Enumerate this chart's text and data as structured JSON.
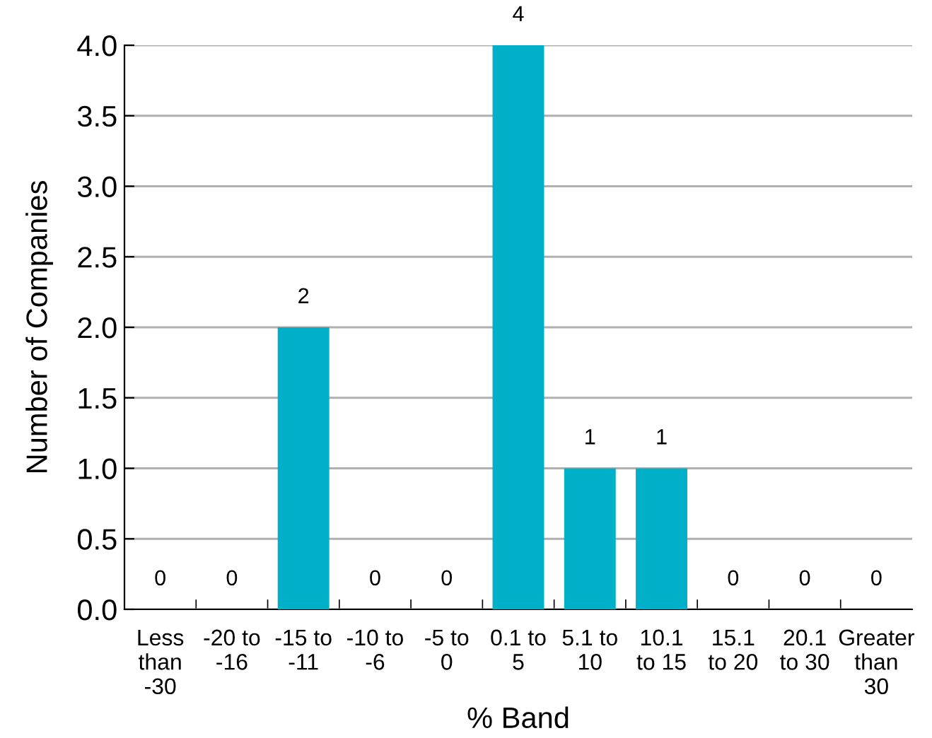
{
  "chart_data": {
    "type": "bar",
    "xlabel": "% Band",
    "ylabel": "Number of Companies",
    "categories": [
      "Less\nthan\n-30",
      "-20 to\n-16",
      "-15 to\n-11",
      "-10 to\n-6",
      "-5 to\n0",
      "0.1 to\n5",
      "5.1 to\n10",
      "10.1\nto 15",
      "15.1\nto 20",
      "20.1\nto 30",
      "Greater\nthan\n30"
    ],
    "values": [
      0,
      0,
      2,
      0,
      0,
      4,
      1,
      1,
      0,
      0,
      0
    ],
    "color": "#00afc8",
    "ylim": [
      0,
      4
    ],
    "yticks": [
      {
        "value": 0,
        "label": "0.0"
      },
      {
        "value": 0.5,
        "label": "0.5"
      },
      {
        "value": 1,
        "label": "1.0"
      },
      {
        "value": 1.5,
        "label": "1.5"
      },
      {
        "value": 2,
        "label": "2.0"
      },
      {
        "value": 2.5,
        "label": "2.5"
      },
      {
        "value": 3,
        "label": "3.0"
      },
      {
        "value": 3.5,
        "label": "3.5"
      },
      {
        "value": 4,
        "label": "4.0"
      }
    ],
    "grid": "y",
    "data_labels": true
  }
}
